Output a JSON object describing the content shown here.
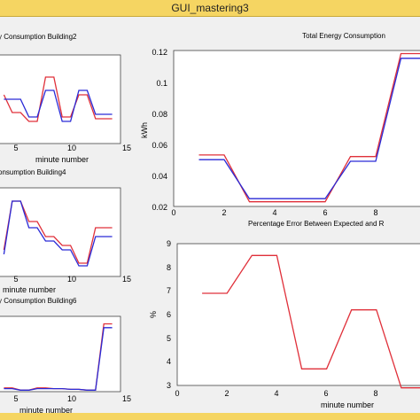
{
  "window": {
    "title": "GUI_mastering3"
  },
  "colors": {
    "series_expected": "#e0303a",
    "series_actual": "#2a2ad6",
    "titlebar": "#f5d562"
  },
  "plots": {
    "b2": {
      "title": "y Consumption  Building2",
      "xlabel": "minute number",
      "xticks": [
        "5",
        "10",
        "15"
      ]
    },
    "b4": {
      "title": "onsumption  Building4",
      "xlabel": "minute number",
      "xticks": [
        "5",
        "10",
        "15"
      ]
    },
    "b6": {
      "title": "y Consumption  Building6",
      "xlabel": "minute number",
      "xticks": [
        "5",
        "10",
        "15"
      ]
    },
    "total": {
      "title": "Total Energy Consumption",
      "ylabel": "kWh",
      "yticks": [
        "0.12",
        "0.1",
        "0.08",
        "0.06",
        "0.04",
        "0.02"
      ],
      "xticks": [
        "0",
        "2",
        "4",
        "6",
        "8"
      ]
    },
    "pct": {
      "title": "Percentage Error Between Expected and R",
      "ylabel": "%",
      "xlabel": "minute number",
      "yticks": [
        "9",
        "8",
        "7",
        "6",
        "5",
        "4",
        "3"
      ],
      "xticks": [
        "0",
        "2",
        "4",
        "6",
        "8"
      ]
    }
  },
  "chart_data": [
    {
      "type": "line",
      "title": "Total Energy Consumption",
      "ylabel": "kWh",
      "x": [
        1,
        2,
        3,
        4,
        5,
        6,
        7,
        8,
        9,
        10
      ],
      "xlim": [
        0,
        10
      ],
      "ylim": [
        0.02,
        0.12
      ],
      "series": [
        {
          "color": "#e0303a",
          "values": [
            0.053,
            0.053,
            0.023,
            0.023,
            0.023,
            0.023,
            0.052,
            0.052,
            0.118,
            0.118
          ]
        },
        {
          "color": "#2a2ad6",
          "values": [
            0.05,
            0.05,
            0.025,
            0.025,
            0.025,
            0.025,
            0.049,
            0.049,
            0.115,
            0.115
          ]
        }
      ]
    },
    {
      "type": "line",
      "title": "Percentage Error Between Expected and R",
      "ylabel": "%",
      "xlabel": "minute number",
      "x": [
        1,
        2,
        3,
        4,
        5,
        6,
        7,
        8,
        9,
        10
      ],
      "xlim": [
        0,
        10
      ],
      "ylim": [
        3,
        9
      ],
      "series": [
        {
          "color": "#e0303a",
          "values": [
            6.9,
            6.9,
            8.5,
            8.5,
            3.7,
            3.7,
            6.2,
            6.2,
            2.9,
            2.9
          ]
        }
      ]
    },
    {
      "type": "line",
      "title": "y Consumption  Building2",
      "xlabel": "minute number",
      "x": [
        1,
        2,
        3,
        4,
        5,
        6,
        7,
        8,
        9,
        10,
        11,
        12,
        13,
        14
      ],
      "xlim": [
        0,
        15
      ],
      "ylim": [
        0,
        1
      ],
      "series": [
        {
          "color": "#e0303a",
          "values": [
            0.55,
            0.35,
            0.35,
            0.25,
            0.25,
            0.75,
            0.75,
            0.3,
            0.3,
            0.55,
            0.55,
            0.28,
            0.28,
            0.28
          ]
        },
        {
          "color": "#2a2ad6",
          "values": [
            0.5,
            0.5,
            0.5,
            0.3,
            0.3,
            0.6,
            0.6,
            0.25,
            0.25,
            0.6,
            0.6,
            0.33,
            0.33,
            0.33
          ]
        }
      ]
    },
    {
      "type": "line",
      "title": "onsumption  Building4",
      "xlabel": "minute number",
      "x": [
        1,
        2,
        3,
        4,
        5,
        6,
        7,
        8,
        9,
        10,
        11,
        12,
        13,
        14
      ],
      "xlim": [
        0,
        15
      ],
      "ylim": [
        0,
        1
      ],
      "series": [
        {
          "color": "#e0303a",
          "values": [
            0.3,
            0.85,
            0.85,
            0.62,
            0.62,
            0.45,
            0.45,
            0.35,
            0.35,
            0.15,
            0.15,
            0.55,
            0.55,
            0.55
          ]
        },
        {
          "color": "#2a2ad6",
          "values": [
            0.25,
            0.85,
            0.85,
            0.55,
            0.55,
            0.4,
            0.4,
            0.3,
            0.3,
            0.12,
            0.12,
            0.45,
            0.45,
            0.45
          ]
        }
      ]
    },
    {
      "type": "line",
      "title": "y Consumption  Building6",
      "xlabel": "minute number",
      "x": [
        1,
        2,
        3,
        4,
        5,
        6,
        7,
        8,
        9,
        10,
        11,
        12,
        13,
        14
      ],
      "xlim": [
        0,
        15
      ],
      "ylim": [
        0,
        1
      ],
      "series": [
        {
          "color": "#e0303a",
          "values": [
            0.05,
            0.05,
            0.02,
            0.02,
            0.05,
            0.05,
            0.04,
            0.04,
            0.03,
            0.03,
            0.02,
            0.02,
            0.9,
            0.9
          ]
        },
        {
          "color": "#2a2ad6",
          "values": [
            0.04,
            0.04,
            0.02,
            0.02,
            0.04,
            0.04,
            0.04,
            0.04,
            0.03,
            0.03,
            0.02,
            0.02,
            0.85,
            0.85
          ]
        }
      ]
    }
  ]
}
